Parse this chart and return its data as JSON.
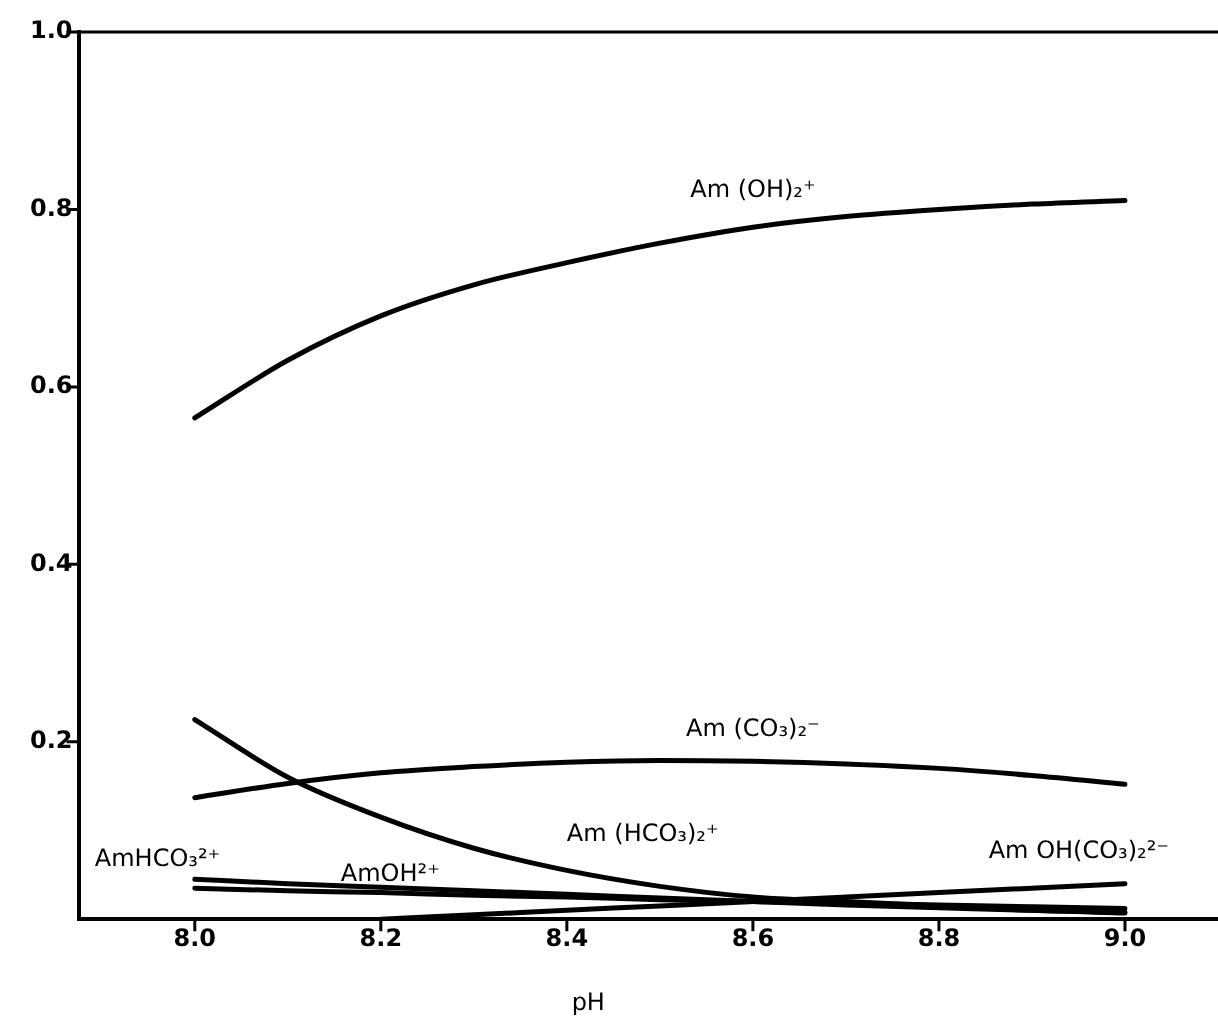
{
  "chart_data": {
    "type": "line",
    "xlabel": "pH",
    "x": [
      8.0,
      8.1,
      8.2,
      8.3,
      8.4,
      8.5,
      8.6,
      8.7,
      8.8,
      8.9,
      9.0
    ],
    "series": [
      {
        "name": "Am (OH)₂⁺",
        "color": "#000000",
        "values": [
          0.565,
          0.63,
          0.68,
          0.715,
          0.74,
          0.762,
          0.78,
          0.792,
          0.8,
          0.806,
          0.81
        ]
      },
      {
        "name": "Am (CO₃)₂⁻",
        "color": "#000000",
        "values": [
          0.137,
          0.153,
          0.165,
          0.172,
          0.177,
          0.179,
          0.178,
          0.175,
          0.17,
          0.162,
          0.152
        ]
      },
      {
        "name": "Am (HCO₃)₂⁺",
        "color": "#000000",
        "values": [
          0.225,
          0.16,
          0.115,
          0.08,
          0.055,
          0.037,
          0.025,
          0.02,
          0.015,
          0.01,
          0.007
        ]
      },
      {
        "name": "Am OH(CO₃)₂²⁻",
        "color": "#000000",
        "values": [
          null,
          null,
          0.0,
          0.005,
          0.01,
          0.015,
          0.02,
          0.025,
          0.03,
          0.035,
          0.04
        ]
      },
      {
        "name": "AmHCO₃²⁺",
        "color": "#000000",
        "values": [
          0.045,
          0.04,
          0.036,
          0.032,
          0.028,
          0.024,
          0.02,
          0.016,
          0.013,
          0.01,
          0.008
        ]
      },
      {
        "name": "AmOH²⁺",
        "color": "#000000",
        "values": [
          0.035,
          0.032,
          0.03,
          0.027,
          0.025,
          0.022,
          0.02,
          0.018,
          0.016,
          0.014,
          0.012
        ]
      }
    ],
    "xlim": [
      7.875,
      9.1
    ],
    "ylim": [
      0,
      1
    ],
    "xticks": [
      {
        "value": 8,
        "label": "8.0"
      },
      8.2,
      8.4,
      8.6,
      8.8,
      {
        "value": 9,
        "label": "9.0"
      }
    ],
    "yticks": [
      {
        "value": 0.2,
        "label": "0.2"
      },
      0.4,
      0.6,
      0.8,
      {
        "value": 1,
        "label": "1.0"
      }
    ],
    "grid": false,
    "legend": false,
    "marker": "none",
    "line_style": "solid"
  }
}
